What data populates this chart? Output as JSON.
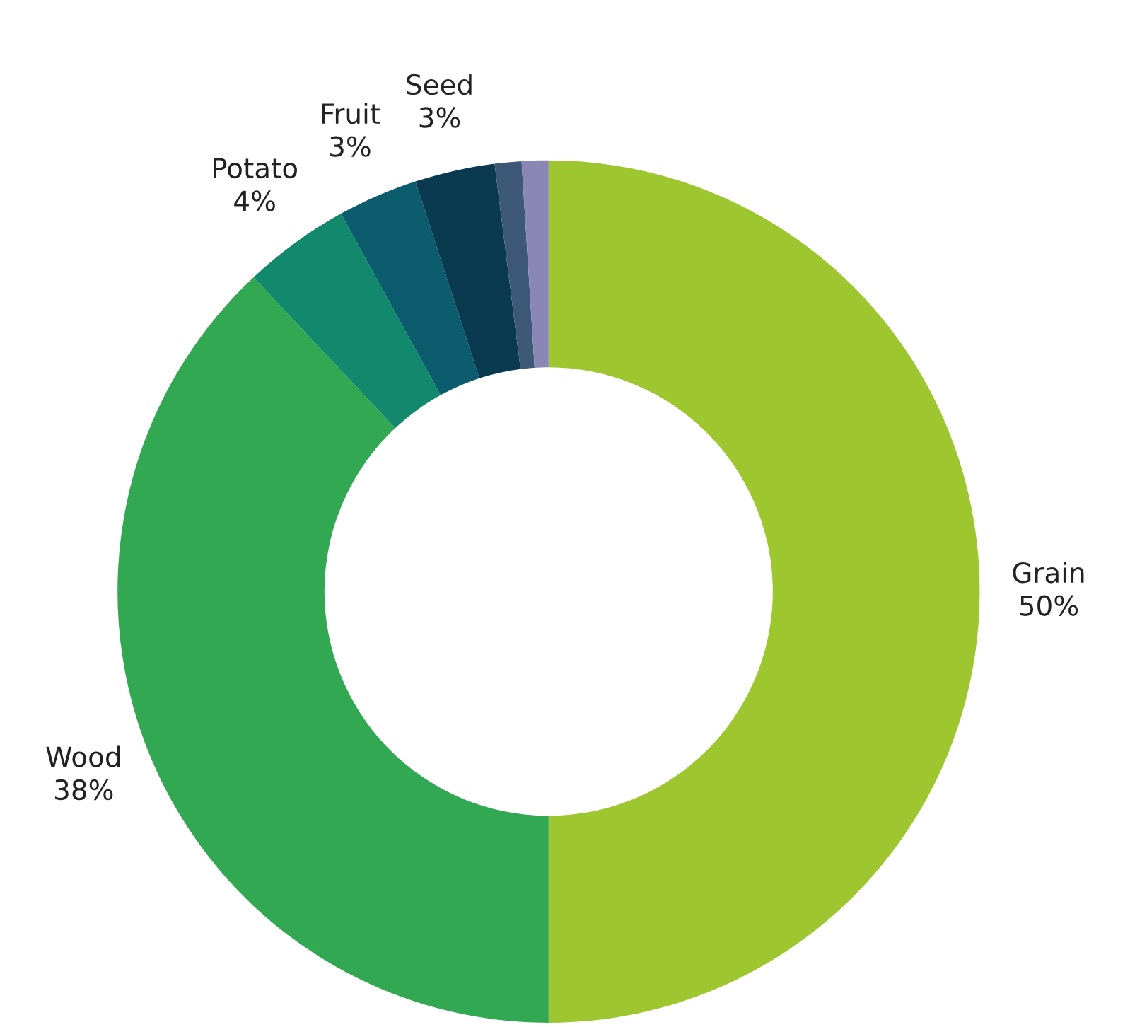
{
  "chart_data": {
    "type": "donut",
    "categories": [
      "Grain",
      "Wood",
      "Potato",
      "Fruit",
      "Seed",
      null,
      null
    ],
    "values": [
      50,
      38,
      4,
      3,
      3,
      1,
      1
    ],
    "value_labels": [
      "50%",
      "38%",
      "4%",
      "3%",
      "3%",
      null,
      null
    ],
    "colors": [
      "#9dc62f",
      "#32a852",
      "#12896c",
      "#0b5d6d",
      "#0a3a4f",
      "#3e5877",
      "#8a86b5"
    ]
  }
}
